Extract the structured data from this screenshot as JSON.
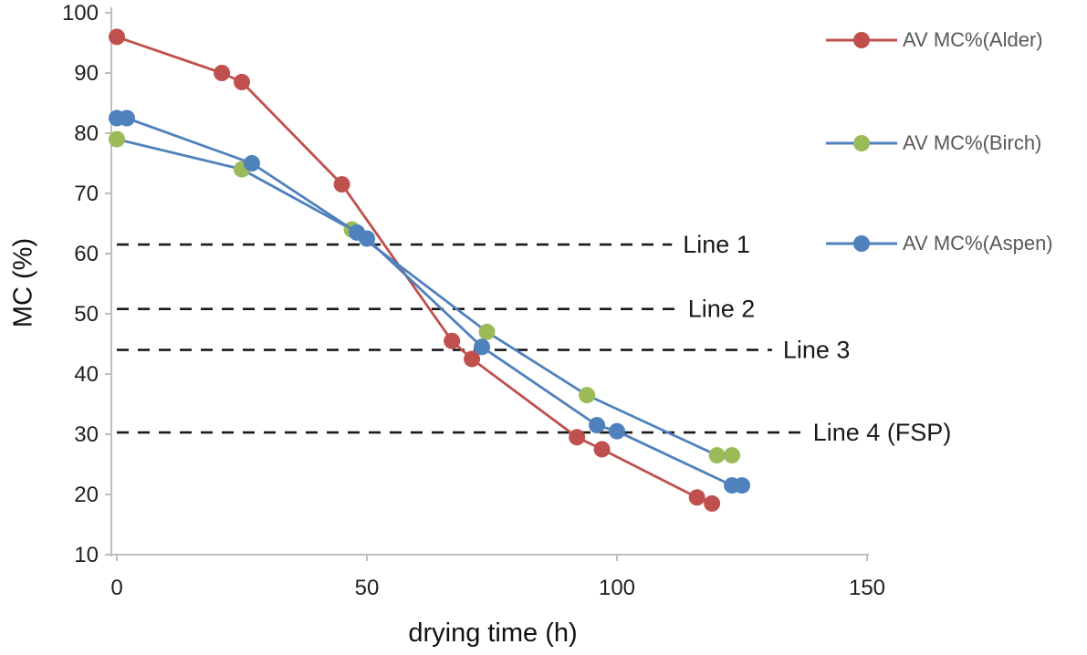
{
  "chart_data": {
    "type": "line",
    "title": "",
    "xlabel": "drying time (h)",
    "ylabel": "MC (%)",
    "xlim": [
      0,
      150
    ],
    "ylim": [
      10,
      100
    ],
    "x_ticks": [
      0,
      50,
      100,
      150
    ],
    "y_ticks": [
      10,
      20,
      30,
      40,
      50,
      60,
      70,
      80,
      90,
      100
    ],
    "grid": false,
    "legend_position": "right",
    "series": [
      {
        "name": "AV MC%(Alder)",
        "line_color": "#c0504d",
        "marker_color": "#c0504d",
        "points": [
          [
            0,
            96
          ],
          [
            21,
            90
          ],
          [
            25,
            88.5
          ],
          [
            45,
            71.5
          ],
          [
            67,
            45.5
          ],
          [
            71,
            42.5
          ],
          [
            92,
            29.5
          ],
          [
            97,
            27.5
          ],
          [
            116,
            19.5
          ],
          [
            119,
            18.5
          ]
        ]
      },
      {
        "name": "AV MC%(Birch)",
        "line_color": "#4f81bd",
        "marker_color": "#9bbb59",
        "points": [
          [
            0,
            79
          ],
          [
            25,
            74
          ],
          [
            47,
            64
          ],
          [
            74,
            47
          ],
          [
            94,
            36.5
          ],
          [
            120,
            26.5
          ],
          [
            123,
            26.5
          ]
        ]
      },
      {
        "name": "AV MC%(Aspen)",
        "line_color": "#4f81bd",
        "marker_color": "#4f81bd",
        "points": [
          [
            0,
            82.5
          ],
          [
            2,
            82.5
          ],
          [
            27,
            75
          ],
          [
            48,
            63.5
          ],
          [
            50,
            62.5
          ],
          [
            73,
            44.5
          ],
          [
            96,
            31.5
          ],
          [
            100,
            30.5
          ],
          [
            123,
            21.5
          ],
          [
            125,
            21.5
          ]
        ]
      }
    ],
    "reference_lines": [
      {
        "label": "Line 1",
        "y": 61.5,
        "x_start": 0,
        "x_end": 111
      },
      {
        "label": "Line 2",
        "y": 50.8,
        "x_start": 0,
        "x_end": 112
      },
      {
        "label": "Line 3",
        "y": 44.0,
        "x_start": 0,
        "x_end": 131
      },
      {
        "label": "Line 4 (FSP)",
        "y": 30.3,
        "x_start": 0,
        "x_end": 137
      }
    ],
    "colors": {
      "axis": "#bfbfbf",
      "text": "#1f1f1f",
      "ref_line": "#1a1a1a"
    }
  }
}
